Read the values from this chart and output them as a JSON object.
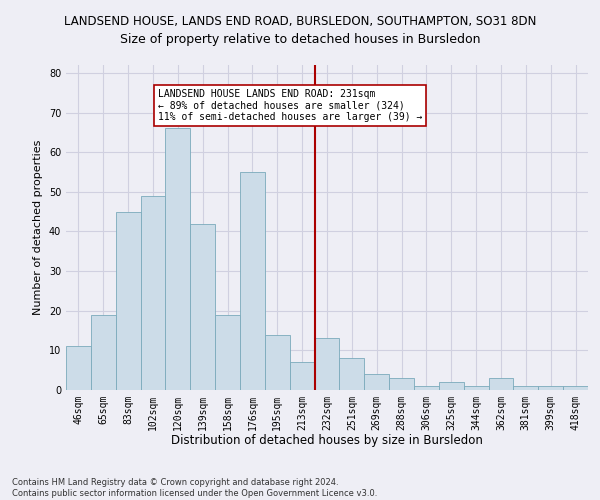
{
  "title1": "LANDSEND HOUSE, LANDS END ROAD, BURSLEDON, SOUTHAMPTON, SO31 8DN",
  "title2": "Size of property relative to detached houses in Bursledon",
  "xlabel": "Distribution of detached houses by size in Bursledon",
  "ylabel": "Number of detached properties",
  "bar_color": "#ccdce8",
  "bar_edge_color": "#7aaabb",
  "grid_color": "#d0d0e0",
  "background_color": "#eeeef5",
  "categories": [
    "46sqm",
    "65sqm",
    "83sqm",
    "102sqm",
    "120sqm",
    "139sqm",
    "158sqm",
    "176sqm",
    "195sqm",
    "213sqm",
    "232sqm",
    "251sqm",
    "269sqm",
    "288sqm",
    "306sqm",
    "325sqm",
    "344sqm",
    "362sqm",
    "381sqm",
    "399sqm",
    "418sqm"
  ],
  "values": [
    11,
    19,
    45,
    49,
    66,
    42,
    19,
    55,
    14,
    7,
    13,
    8,
    4,
    3,
    1,
    2,
    1,
    3,
    1,
    1,
    1
  ],
  "vline_x": 9.5,
  "vline_color": "#aa0000",
  "annotation_text": "LANDSEND HOUSE LANDS END ROAD: 231sqm\n← 89% of detached houses are smaller (324)\n11% of semi-detached houses are larger (39) →",
  "ylim": [
    0,
    82
  ],
  "yticks": [
    0,
    10,
    20,
    30,
    40,
    50,
    60,
    70,
    80
  ],
  "footnote": "Contains HM Land Registry data © Crown copyright and database right 2024.\nContains public sector information licensed under the Open Government Licence v3.0.",
  "title1_fontsize": 8.5,
  "title2_fontsize": 9,
  "tick_fontsize": 7,
  "ylabel_fontsize": 8,
  "xlabel_fontsize": 8.5,
  "footnote_fontsize": 6
}
